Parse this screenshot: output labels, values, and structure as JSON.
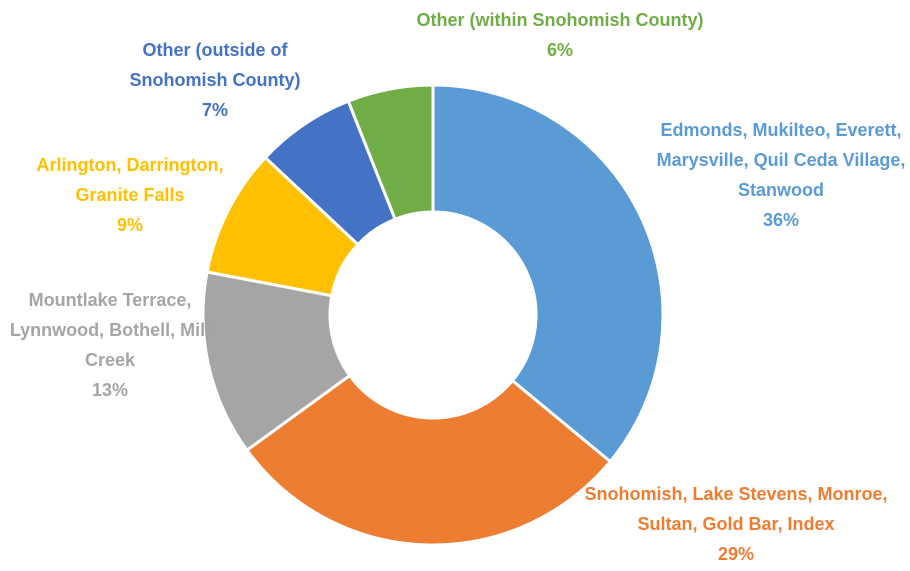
{
  "chart_data": {
    "type": "donut",
    "categories": [
      "Edmonds, Mukilteo, Everett, Marysville, Quil Ceda Village, Stanwood",
      "Snohomish, Lake Stevens, Monroe, Sultan, Gold Bar, Index",
      "Mountlake Terrace, Lynnwood, Bothell, Mill Creek",
      "Arlington, Darrington, Granite Falls",
      "Other (outside of Snohomish County)",
      "Other (within Snohomish County)"
    ],
    "values": [
      36,
      29,
      13,
      9,
      7,
      6
    ],
    "value_labels": [
      "36%",
      "29%",
      "13%",
      "9%",
      "7%",
      "6%"
    ],
    "colors": [
      "#5b9bd5",
      "#ed7d31",
      "#a5a5a5",
      "#ffc000",
      "#4472c4",
      "#70ad47"
    ]
  }
}
